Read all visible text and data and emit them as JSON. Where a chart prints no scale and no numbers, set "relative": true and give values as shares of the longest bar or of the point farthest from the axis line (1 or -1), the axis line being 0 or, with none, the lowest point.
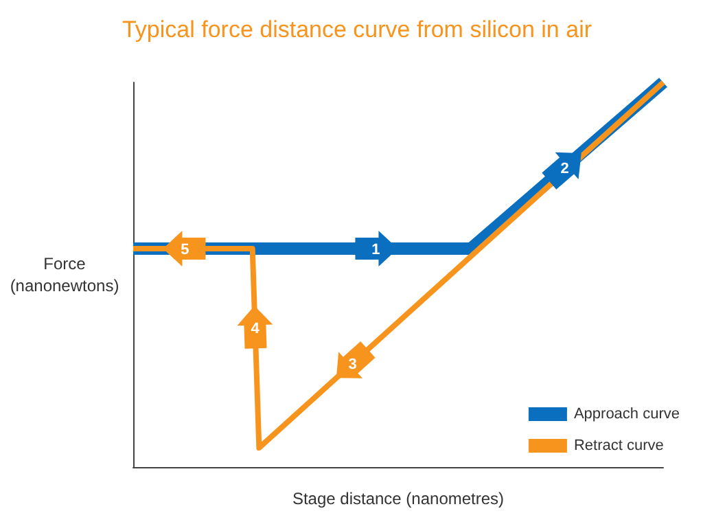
{
  "chart_data": {
    "type": "line",
    "title": "Typical force distance curve from silicon in air",
    "xlabel": "Stage distance (nanometres)",
    "ylabel": "Force (nanonewtons)",
    "relative": true,
    "legend": "bottom right",
    "marker": "none",
    "line_style": "solid",
    "categories": [
      null,
      null,
      null,
      null,
      null,
      null,
      null,
      null,
      null,
      null,
      null,
      null,
      null,
      null,
      null,
      null,
      null,
      null,
      null,
      null,
      null,
      null,
      null,
      null,
      null,
      null,
      null,
      null,
      null,
      null,
      null,
      null,
      null,
      null,
      null,
      null,
      null,
      null,
      null,
      null,
      null,
      null,
      null,
      null,
      null,
      null,
      null,
      null,
      null,
      null,
      null,
      null,
      null,
      null,
      null,
      null,
      null,
      null,
      null,
      null,
      null,
      null,
      null,
      null,
      null,
      null,
      null,
      null,
      null,
      null,
      null,
      null,
      null,
      null,
      null,
      null,
      null,
      null,
      null,
      null,
      null
    ],
    "series": [
      {
        "name": "Approach curve",
        "color": "#0a6fbf",
        "values": [
          0.568,
          null,
          null,
          null,
          null,
          null,
          null,
          null,
          null,
          null,
          null,
          null,
          null,
          null,
          null,
          null,
          null,
          null,
          null,
          null,
          null,
          null,
          null,
          null,
          null,
          null,
          null,
          null,
          null,
          null,
          null,
          null,
          null,
          null,
          null,
          null,
          null,
          null,
          null,
          null,
          null,
          null,
          null,
          null,
          null,
          null,
          null,
          null,
          null,
          null,
          null,
          0.568,
          null,
          null,
          null,
          null,
          null,
          null,
          null,
          null,
          null,
          null,
          null,
          null,
          null,
          null,
          null,
          null,
          null,
          null,
          null,
          null,
          null,
          null,
          null,
          null,
          null,
          null,
          null,
          null,
          1
        ]
      },
      {
        "name": "Retract curve",
        "color": "#f7941d",
        "values": [
          0.568,
          null,
          null,
          null,
          null,
          null,
          null,
          null,
          null,
          null,
          null,
          null,
          null,
          null,
          null,
          null,
          null,
          null,
          0.568,
          0.05,
          null,
          null,
          null,
          null,
          null,
          null,
          null,
          null,
          null,
          null,
          null,
          null,
          null,
          null,
          null,
          null,
          null,
          null,
          null,
          null,
          null,
          null,
          null,
          null,
          null,
          null,
          null,
          null,
          null,
          null,
          null,
          null,
          null,
          null,
          null,
          null,
          null,
          null,
          null,
          null,
          null,
          null,
          null,
          null,
          null,
          null,
          null,
          null,
          null,
          null,
          null,
          null,
          null,
          null,
          null,
          null,
          null,
          null,
          null,
          null,
          1
        ]
      }
    ],
    "annotations": [
      "1",
      "2",
      "3",
      "4",
      "5"
    ]
  }
}
